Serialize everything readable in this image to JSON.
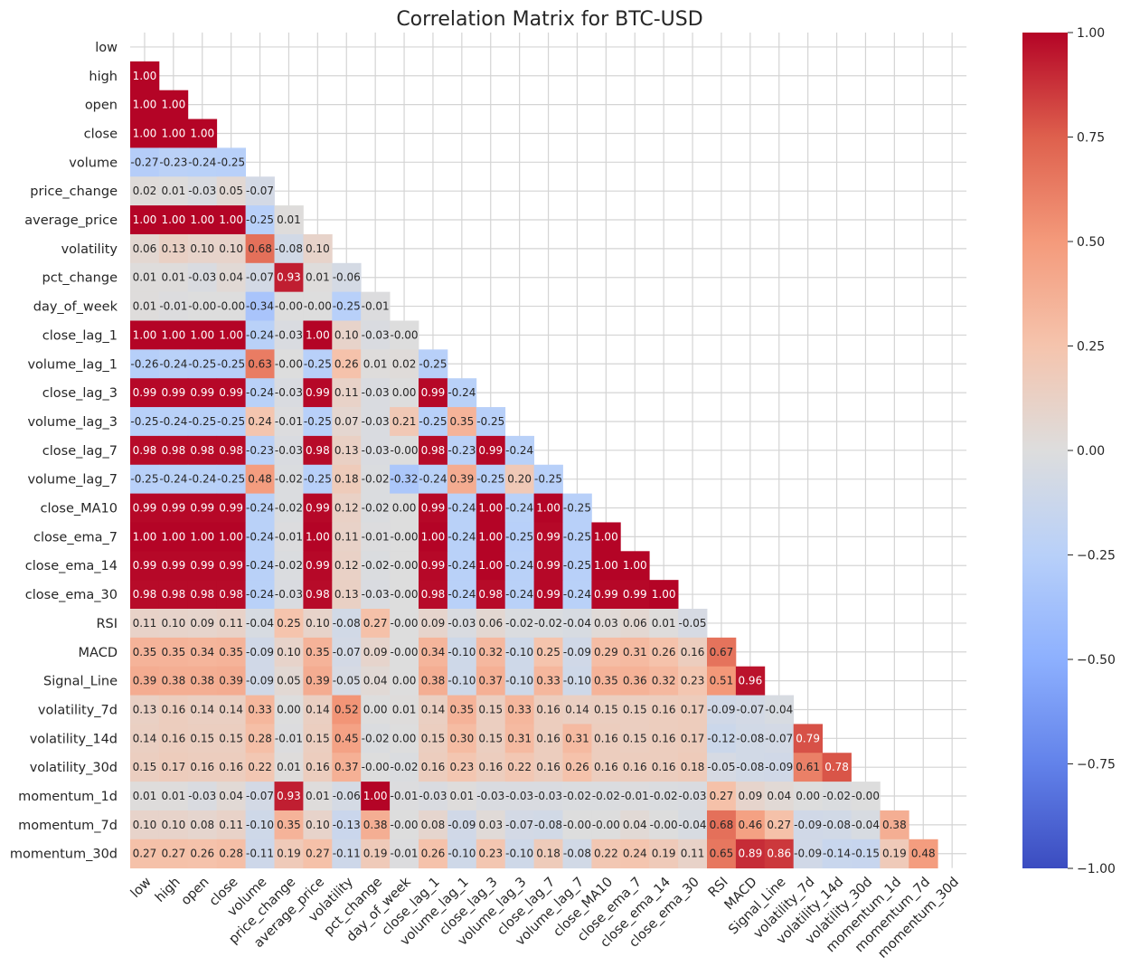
{
  "chart_data": {
    "type": "heatmap",
    "title": "Correlation Matrix for BTC-USD",
    "mask": "upper-triangle-and-diagonal",
    "cell_format": "0.00",
    "colormap": "coolwarm",
    "colors": {
      "low": "#3b4cc0",
      "mid": "#dddddd",
      "high": "#b40426"
    },
    "grid": true,
    "vmin": -1.0,
    "vmax": 1.0,
    "colorbar_ticks": [
      "1.00",
      "0.75",
      "0.50",
      "0.25",
      "0.00",
      "−0.25",
      "−0.50",
      "−0.75",
      "−1.00"
    ],
    "colorbar_tick_values": [
      1.0,
      0.75,
      0.5,
      0.25,
      0.0,
      -0.25,
      -0.5,
      -0.75,
      -1.0
    ],
    "labels": [
      "low",
      "high",
      "open",
      "close",
      "volume",
      "price_change",
      "average_price",
      "volatility",
      "pct_change",
      "day_of_week",
      "close_lag_1",
      "volume_lag_1",
      "close_lag_3",
      "volume_lag_3",
      "close_lag_7",
      "volume_lag_7",
      "close_MA10",
      "close_ema_7",
      "close_ema_14",
      "close_ema_30",
      "RSI",
      "MACD",
      "Signal_Line",
      "volatility_7d",
      "volatility_14d",
      "volatility_30d",
      "momentum_1d",
      "momentum_7d",
      "momentum_30d"
    ],
    "values": [
      [],
      [
        1.0
      ],
      [
        1.0,
        1.0
      ],
      [
        1.0,
        1.0,
        1.0
      ],
      [
        -0.27,
        -0.23,
        -0.24,
        -0.25
      ],
      [
        0.02,
        0.01,
        -0.03,
        0.05,
        -0.07
      ],
      [
        1.0,
        1.0,
        1.0,
        1.0,
        -0.25,
        0.01
      ],
      [
        0.06,
        0.13,
        0.1,
        0.1,
        0.68,
        -0.08,
        0.1
      ],
      [
        0.01,
        0.01,
        -0.03,
        0.04,
        -0.07,
        0.93,
        0.01,
        -0.06
      ],
      [
        0.01,
        -0.01,
        -0.0,
        -0.0,
        -0.34,
        -0.0,
        -0.0,
        -0.25,
        -0.01
      ],
      [
        1.0,
        1.0,
        1.0,
        1.0,
        -0.24,
        -0.03,
        1.0,
        0.1,
        -0.03,
        -0.0
      ],
      [
        -0.26,
        -0.24,
        -0.25,
        -0.25,
        0.63,
        -0.0,
        -0.25,
        0.26,
        0.01,
        0.02,
        -0.25
      ],
      [
        0.99,
        0.99,
        0.99,
        0.99,
        -0.24,
        -0.03,
        0.99,
        0.11,
        -0.03,
        0.0,
        0.99,
        -0.24
      ],
      [
        -0.25,
        -0.24,
        -0.25,
        -0.25,
        0.24,
        -0.01,
        -0.25,
        0.07,
        -0.03,
        0.21,
        -0.25,
        0.35,
        -0.25
      ],
      [
        0.98,
        0.98,
        0.98,
        0.98,
        -0.23,
        -0.03,
        0.98,
        0.13,
        -0.03,
        -0.0,
        0.98,
        -0.23,
        0.99,
        -0.24
      ],
      [
        -0.25,
        -0.24,
        -0.24,
        -0.25,
        0.48,
        -0.02,
        -0.25,
        0.18,
        -0.02,
        -0.32,
        -0.24,
        0.39,
        -0.25,
        0.2,
        -0.25
      ],
      [
        0.99,
        0.99,
        0.99,
        0.99,
        -0.24,
        -0.02,
        0.99,
        0.12,
        -0.02,
        0.0,
        0.99,
        -0.24,
        1.0,
        -0.24,
        1.0,
        -0.25
      ],
      [
        1.0,
        1.0,
        1.0,
        1.0,
        -0.24,
        -0.01,
        1.0,
        0.11,
        -0.01,
        -0.0,
        1.0,
        -0.24,
        1.0,
        -0.25,
        0.99,
        -0.25,
        1.0
      ],
      [
        0.99,
        0.99,
        0.99,
        0.99,
        -0.24,
        -0.02,
        0.99,
        0.12,
        -0.02,
        -0.0,
        0.99,
        -0.24,
        1.0,
        -0.24,
        0.99,
        -0.25,
        1.0,
        1.0
      ],
      [
        0.98,
        0.98,
        0.98,
        0.98,
        -0.24,
        -0.03,
        0.98,
        0.13,
        -0.03,
        -0.0,
        0.98,
        -0.24,
        0.98,
        -0.24,
        0.99,
        -0.24,
        0.99,
        0.99,
        1.0
      ],
      [
        0.11,
        0.1,
        0.09,
        0.11,
        -0.04,
        0.25,
        0.1,
        -0.08,
        0.27,
        -0.0,
        0.09,
        -0.03,
        0.06,
        -0.02,
        -0.02,
        -0.04,
        0.03,
        0.06,
        0.01,
        -0.05
      ],
      [
        0.35,
        0.35,
        0.34,
        0.35,
        -0.09,
        0.1,
        0.35,
        -0.07,
        0.09,
        -0.0,
        0.34,
        -0.1,
        0.32,
        -0.1,
        0.25,
        -0.09,
        0.29,
        0.31,
        0.26,
        0.16,
        0.67
      ],
      [
        0.39,
        0.38,
        0.38,
        0.39,
        -0.09,
        0.05,
        0.39,
        -0.05,
        0.04,
        0.0,
        0.38,
        -0.1,
        0.37,
        -0.1,
        0.33,
        -0.1,
        0.35,
        0.36,
        0.32,
        0.23,
        0.51,
        0.96
      ],
      [
        0.13,
        0.16,
        0.14,
        0.14,
        0.33,
        0.0,
        0.14,
        0.52,
        0.0,
        0.01,
        0.14,
        0.35,
        0.15,
        0.33,
        0.16,
        0.14,
        0.15,
        0.15,
        0.16,
        0.17,
        -0.09,
        -0.07,
        -0.04
      ],
      [
        0.14,
        0.16,
        0.15,
        0.15,
        0.28,
        -0.01,
        0.15,
        0.45,
        -0.02,
        0.0,
        0.15,
        0.3,
        0.15,
        0.31,
        0.16,
        0.31,
        0.16,
        0.15,
        0.16,
        0.17,
        -0.12,
        -0.08,
        -0.07,
        0.79
      ],
      [
        0.15,
        0.17,
        0.16,
        0.16,
        0.22,
        0.01,
        0.16,
        0.37,
        -0.0,
        -0.02,
        0.16,
        0.23,
        0.16,
        0.22,
        0.16,
        0.26,
        0.16,
        0.16,
        0.16,
        0.18,
        -0.05,
        -0.08,
        -0.09,
        0.61,
        0.78
      ],
      [
        0.01,
        0.01,
        -0.03,
        0.04,
        -0.07,
        0.93,
        0.01,
        -0.06,
        1.0,
        -0.01,
        -0.03,
        0.01,
        -0.03,
        -0.03,
        -0.03,
        -0.02,
        -0.02,
        -0.01,
        -0.02,
        -0.03,
        0.27,
        0.09,
        0.04,
        0.0,
        -0.02,
        -0.0
      ],
      [
        0.1,
        0.1,
        0.08,
        0.11,
        -0.1,
        0.35,
        0.1,
        -0.13,
        0.38,
        -0.0,
        0.08,
        -0.09,
        0.03,
        -0.07,
        -0.08,
        -0.0,
        -0.0,
        0.04,
        -0.0,
        -0.04,
        0.68,
        0.46,
        0.27,
        -0.09,
        -0.08,
        -0.04,
        0.38
      ],
      [
        0.27,
        0.27,
        0.26,
        0.28,
        -0.11,
        0.19,
        0.27,
        -0.11,
        0.19,
        -0.01,
        0.26,
        -0.1,
        0.23,
        -0.1,
        0.18,
        -0.08,
        0.22,
        0.24,
        0.19,
        0.11,
        0.65,
        0.89,
        0.86,
        -0.09,
        -0.14,
        -0.15,
        0.19,
        0.48
      ]
    ]
  }
}
